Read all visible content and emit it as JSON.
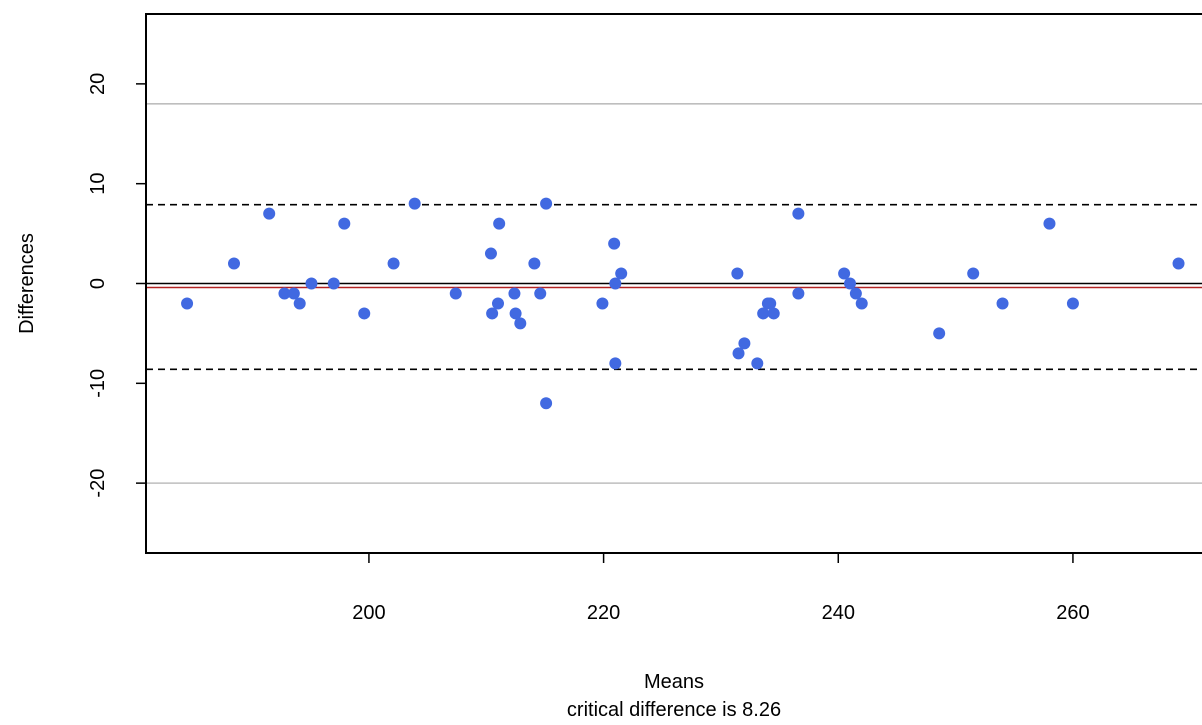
{
  "chart_data": {
    "type": "scatter",
    "title": "",
    "xlabel": "Means",
    "ylabel": "Differences",
    "subtitle": "critical difference is 8.26",
    "xlim": [
      181,
      271
    ],
    "ylim": [
      -27,
      27
    ],
    "x_ticks": [
      200,
      220,
      240,
      260
    ],
    "y_ticks": [
      -20,
      -10,
      0,
      10,
      20
    ],
    "points": [
      {
        "x": 184.5,
        "y": -2
      },
      {
        "x": 188.5,
        "y": 2
      },
      {
        "x": 191.5,
        "y": 7
      },
      {
        "x": 192.8,
        "y": -1
      },
      {
        "x": 193.6,
        "y": -1
      },
      {
        "x": 194.1,
        "y": -2
      },
      {
        "x": 195.1,
        "y": 0
      },
      {
        "x": 197.0,
        "y": 0
      },
      {
        "x": 197.9,
        "y": 6
      },
      {
        "x": 199.6,
        "y": -3
      },
      {
        "x": 202.1,
        "y": 2
      },
      {
        "x": 203.9,
        "y": 8
      },
      {
        "x": 207.4,
        "y": -1
      },
      {
        "x": 210.4,
        "y": 3
      },
      {
        "x": 210.5,
        "y": -3
      },
      {
        "x": 211.0,
        "y": -2
      },
      {
        "x": 211.1,
        "y": 6
      },
      {
        "x": 212.4,
        "y": -1
      },
      {
        "x": 212.5,
        "y": -3
      },
      {
        "x": 212.9,
        "y": -4
      },
      {
        "x": 214.1,
        "y": 2
      },
      {
        "x": 214.6,
        "y": -1
      },
      {
        "x": 215.1,
        "y": 8
      },
      {
        "x": 215.1,
        "y": -12
      },
      {
        "x": 219.9,
        "y": -2
      },
      {
        "x": 220.9,
        "y": 4
      },
      {
        "x": 221.0,
        "y": 0
      },
      {
        "x": 221.0,
        "y": -8
      },
      {
        "x": 221.5,
        "y": 1
      },
      {
        "x": 231.4,
        "y": 1
      },
      {
        "x": 231.5,
        "y": -7
      },
      {
        "x": 232.0,
        "y": -6
      },
      {
        "x": 233.1,
        "y": -8
      },
      {
        "x": 233.6,
        "y": -3
      },
      {
        "x": 234.0,
        "y": -2
      },
      {
        "x": 234.2,
        "y": -2
      },
      {
        "x": 234.5,
        "y": -3
      },
      {
        "x": 236.6,
        "y": 7
      },
      {
        "x": 236.6,
        "y": -1
      },
      {
        "x": 240.5,
        "y": 1
      },
      {
        "x": 241.0,
        "y": 0
      },
      {
        "x": 241.5,
        "y": -1
      },
      {
        "x": 242.0,
        "y": -2
      },
      {
        "x": 248.6,
        "y": -5
      },
      {
        "x": 251.5,
        "y": 1
      },
      {
        "x": 254.0,
        "y": -2
      },
      {
        "x": 258.0,
        "y": 6
      },
      {
        "x": 260.0,
        "y": -2
      },
      {
        "x": 269.0,
        "y": 2
      }
    ],
    "reference_lines": [
      {
        "y": 0,
        "style": "solid",
        "color": "#000000"
      },
      {
        "y": -0.4,
        "style": "solid",
        "color": "#b22222"
      },
      {
        "y": 7.9,
        "style": "dashed",
        "color": "#000000"
      },
      {
        "y": -8.6,
        "style": "dashed",
        "color": "#000000"
      },
      {
        "y": 18,
        "style": "solid",
        "color": "#bebebe"
      },
      {
        "y": -20,
        "style": "solid",
        "color": "#bebebe"
      }
    ],
    "point_color": "#4169e1",
    "grid": false,
    "legend": "none"
  }
}
